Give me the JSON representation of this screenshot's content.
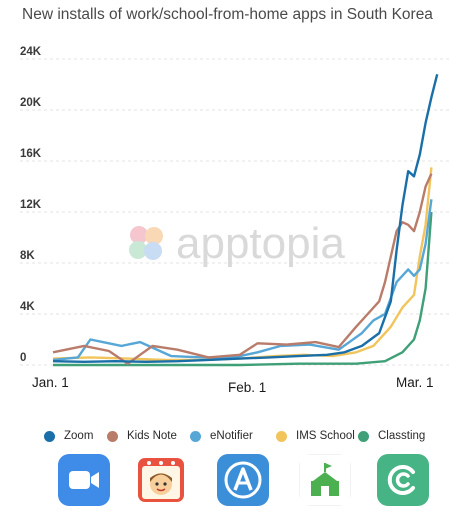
{
  "chart_data": {
    "type": "line",
    "title": "New installs of work/school-from-home apps in South Korea",
    "watermark": "apptopia",
    "xlabel": "",
    "ylabel": "",
    "ylim": [
      0,
      24000
    ],
    "yticks": [
      0,
      4000,
      8000,
      12000,
      16000,
      20000,
      24000
    ],
    "ytick_labels": [
      "0",
      "4K",
      "8K",
      "12K",
      "16K",
      "20K",
      "24K"
    ],
    "x_range": [
      "2020-01-01",
      "2020-03-08"
    ],
    "xticks": [
      "2020-01-01",
      "2020-02-01",
      "2020-03-01"
    ],
    "xtick_labels": [
      "Jan. 1",
      "Feb. 1",
      "Mar. 1"
    ],
    "grid": "horizontal dashed",
    "legend": "bottom",
    "series": [
      {
        "name": "Zoom",
        "color": "#1a6fa8",
        "points": [
          [
            "2020-01-01",
            300
          ],
          [
            "2020-01-06",
            250
          ],
          [
            "2020-01-11",
            300
          ],
          [
            "2020-01-16",
            250
          ],
          [
            "2020-01-21",
            300
          ],
          [
            "2020-01-26",
            400
          ],
          [
            "2020-01-31",
            500
          ],
          [
            "2020-02-05",
            600
          ],
          [
            "2020-02-10",
            700
          ],
          [
            "2020-02-15",
            800
          ],
          [
            "2020-02-18",
            1000
          ],
          [
            "2020-02-21",
            1500
          ],
          [
            "2020-02-24",
            2500
          ],
          [
            "2020-02-26",
            5000
          ],
          [
            "2020-02-27",
            9000
          ],
          [
            "2020-02-28",
            12500
          ],
          [
            "2020-02-29",
            15200
          ],
          [
            "2020-03-01",
            14800
          ],
          [
            "2020-03-02",
            16500
          ],
          [
            "2020-03-03",
            19000
          ],
          [
            "2020-03-04",
            21000
          ],
          [
            "2020-03-05",
            22800
          ]
        ]
      },
      {
        "name": "Kids Note",
        "color": "#b97c6a",
        "points": [
          [
            "2020-01-01",
            1000
          ],
          [
            "2020-01-06",
            1500
          ],
          [
            "2020-01-10",
            1100
          ],
          [
            "2020-01-13",
            100
          ],
          [
            "2020-01-17",
            1500
          ],
          [
            "2020-01-21",
            1200
          ],
          [
            "2020-01-26",
            600
          ],
          [
            "2020-01-31",
            800
          ],
          [
            "2020-02-03",
            1700
          ],
          [
            "2020-02-08",
            1600
          ],
          [
            "2020-02-13",
            1800
          ],
          [
            "2020-02-17",
            1400
          ],
          [
            "2020-02-20",
            3000
          ],
          [
            "2020-02-22",
            4000
          ],
          [
            "2020-02-24",
            5000
          ],
          [
            "2020-02-25",
            6500
          ],
          [
            "2020-02-26",
            8500
          ],
          [
            "2020-02-27",
            10500
          ],
          [
            "2020-02-28",
            11200
          ],
          [
            "2020-02-29",
            11000
          ],
          [
            "2020-03-01",
            10500
          ],
          [
            "2020-03-02",
            12000
          ],
          [
            "2020-03-03",
            14000
          ],
          [
            "2020-03-04",
            15000
          ]
        ]
      },
      {
        "name": "eNotifier",
        "color": "#56a6d6",
        "points": [
          [
            "2020-01-01",
            400
          ],
          [
            "2020-01-05",
            600
          ],
          [
            "2020-01-07",
            2000
          ],
          [
            "2020-01-09",
            1800
          ],
          [
            "2020-01-12",
            1500
          ],
          [
            "2020-01-15",
            1800
          ],
          [
            "2020-01-20",
            700
          ],
          [
            "2020-01-25",
            600
          ],
          [
            "2020-01-30",
            600
          ],
          [
            "2020-02-03",
            1000
          ],
          [
            "2020-02-07",
            1500
          ],
          [
            "2020-02-12",
            1600
          ],
          [
            "2020-02-17",
            1200
          ],
          [
            "2020-02-21",
            2500
          ],
          [
            "2020-02-23",
            3500
          ],
          [
            "2020-02-25",
            4000
          ],
          [
            "2020-02-27",
            6500
          ],
          [
            "2020-02-29",
            7500
          ],
          [
            "2020-03-01",
            7000
          ],
          [
            "2020-03-02",
            7500
          ],
          [
            "2020-03-03",
            9500
          ],
          [
            "2020-03-04",
            13000
          ]
        ]
      },
      {
        "name": "IMS School",
        "color": "#f1c55c",
        "points": [
          [
            "2020-01-01",
            500
          ],
          [
            "2020-01-07",
            600
          ],
          [
            "2020-01-13",
            500
          ],
          [
            "2020-01-19",
            400
          ],
          [
            "2020-01-25",
            400
          ],
          [
            "2020-01-31",
            500
          ],
          [
            "2020-02-06",
            700
          ],
          [
            "2020-02-11",
            800
          ],
          [
            "2020-02-16",
            700
          ],
          [
            "2020-02-20",
            1000
          ],
          [
            "2020-02-23",
            1500
          ],
          [
            "2020-02-26",
            3000
          ],
          [
            "2020-02-28",
            4500
          ],
          [
            "2020-03-01",
            5500
          ],
          [
            "2020-03-02",
            8500
          ],
          [
            "2020-03-03",
            11000
          ],
          [
            "2020-03-04",
            15500
          ]
        ]
      },
      {
        "name": "Classting",
        "color": "#3f9f77",
        "points": [
          [
            "2020-01-01",
            0
          ],
          [
            "2020-01-11",
            0
          ],
          [
            "2020-01-21",
            0
          ],
          [
            "2020-01-31",
            0
          ],
          [
            "2020-02-10",
            100
          ],
          [
            "2020-02-20",
            100
          ],
          [
            "2020-02-25",
            300
          ],
          [
            "2020-02-28",
            1000
          ],
          [
            "2020-03-01",
            2000
          ],
          [
            "2020-03-02",
            3500
          ],
          [
            "2020-03-03",
            6000
          ],
          [
            "2020-03-04",
            12000
          ]
        ]
      }
    ]
  },
  "app_icons": [
    {
      "name": "Zoom",
      "icon": "zoom-app-icon",
      "color": "#3f8ce8"
    },
    {
      "name": "Kids Note",
      "icon": "kids-note-app-icon",
      "color": "#e8523f"
    },
    {
      "name": "eNotifier",
      "icon": "enotifier-app-icon",
      "color": "#3b8fd9"
    },
    {
      "name": "IMS School",
      "icon": "ims-school-app-icon",
      "color": "#4caf50"
    },
    {
      "name": "Classting",
      "icon": "classting-app-icon",
      "color": "#46b484"
    }
  ]
}
